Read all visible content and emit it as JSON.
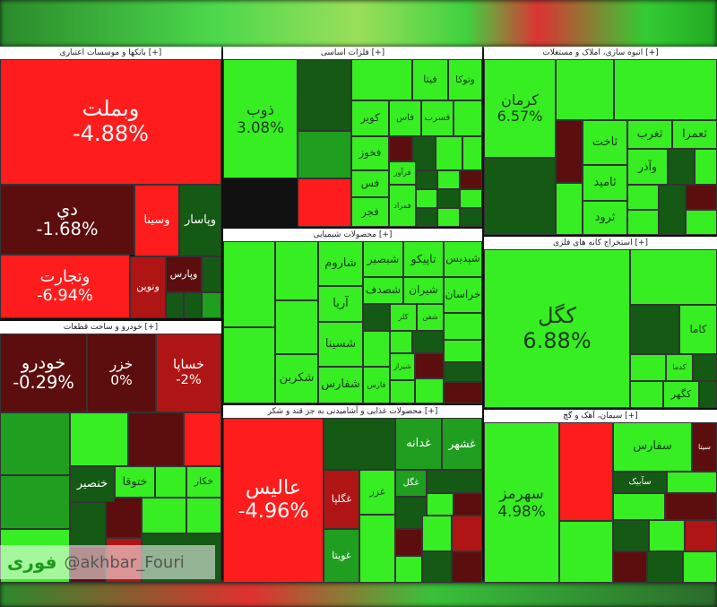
{
  "panels": [
    {
      "title": "بانکها و موسسات اعتباری [+]",
      "tiles": [
        {
          "name": "وبملت",
          "change": "-4.88%"
        },
        {
          "name": "دي",
          "change": "-1.68%"
        },
        {
          "name": "وتجارت",
          "change": "-6.94%"
        },
        {
          "name": "وسینا"
        },
        {
          "name": "وپاسار"
        },
        {
          "name": "ونوین"
        },
        {
          "name": "وپارس"
        }
      ]
    },
    {
      "title": "فلزات اساسی [+]",
      "tiles": [
        {
          "name": "ذوب",
          "change": "3.08%"
        },
        {
          "name": "فیتا"
        },
        {
          "name": "وتوکا"
        },
        {
          "name": "کویر"
        },
        {
          "name": "فاس"
        },
        {
          "name": "فسرب"
        },
        {
          "name": "فخوز"
        },
        {
          "name": "فس"
        },
        {
          "name": "فجر"
        },
        {
          "name": "فمراد"
        },
        {
          "name": "فرآور"
        }
      ]
    },
    {
      "title": "انبوه سازی، املاک و مستغلات [+]",
      "tiles": [
        {
          "name": "کرمان",
          "change": "6.57%"
        },
        {
          "name": "ثاخت"
        },
        {
          "name": "ثامید"
        },
        {
          "name": "ثرود"
        },
        {
          "name": "ثغرب"
        },
        {
          "name": "ثعمرا"
        },
        {
          "name": "وآذر"
        }
      ]
    },
    {
      "title": "محصولات شیمیایی [+]",
      "tiles": [
        {
          "name": "شکربن"
        },
        {
          "name": "شاروم"
        },
        {
          "name": "آریا"
        },
        {
          "name": "شسینا"
        },
        {
          "name": "شفارس"
        },
        {
          "name": "شبصیر"
        },
        {
          "name": "تاپیکو"
        },
        {
          "name": "شپدیس"
        },
        {
          "name": "شصدف"
        },
        {
          "name": "شیران"
        },
        {
          "name": "خراسان"
        },
        {
          "name": "کلر"
        },
        {
          "name": "شفن"
        },
        {
          "name": "فارس"
        },
        {
          "name": "شیراز"
        }
      ]
    },
    {
      "title": "استخراج کانه های فلزی [+]",
      "tiles": [
        {
          "name": "کگل",
          "change": "6.88%"
        },
        {
          "name": "کاما"
        },
        {
          "name": "کدما"
        },
        {
          "name": "کگهر"
        }
      ]
    },
    {
      "title": "خودرو و ساخت قطعات [+]",
      "tiles": [
        {
          "name": "خودرو",
          "change": "-0.29%"
        },
        {
          "name": "خزر",
          "change": "0%"
        },
        {
          "name": "خساپا",
          "change": "-2%"
        },
        {
          "name": "خنصیر"
        },
        {
          "name": "ختوقا"
        },
        {
          "name": "خکار"
        }
      ]
    },
    {
      "title": "محصولات غذایی و آشامیدنی به جز قند و شکر [+]",
      "tiles": [
        {
          "name": "عالیس",
          "change": "-4.96%"
        },
        {
          "name": "غدانه"
        },
        {
          "name": "غشهر"
        },
        {
          "name": "غگلپا"
        },
        {
          "name": "غزر"
        },
        {
          "name": "غگل"
        },
        {
          "name": "غویتا"
        }
      ]
    },
    {
      "title": "سیمان، آهک و گچ [+]",
      "tiles": [
        {
          "name": "سهرمز",
          "change": "4.98%"
        },
        {
          "name": "سفارس"
        },
        {
          "name": "سیتا"
        },
        {
          "name": "سآبیک"
        }
      ]
    }
  ],
  "watermark": {
    "brand": "فوری",
    "handle": "@akhbar_Fouri"
  }
}
